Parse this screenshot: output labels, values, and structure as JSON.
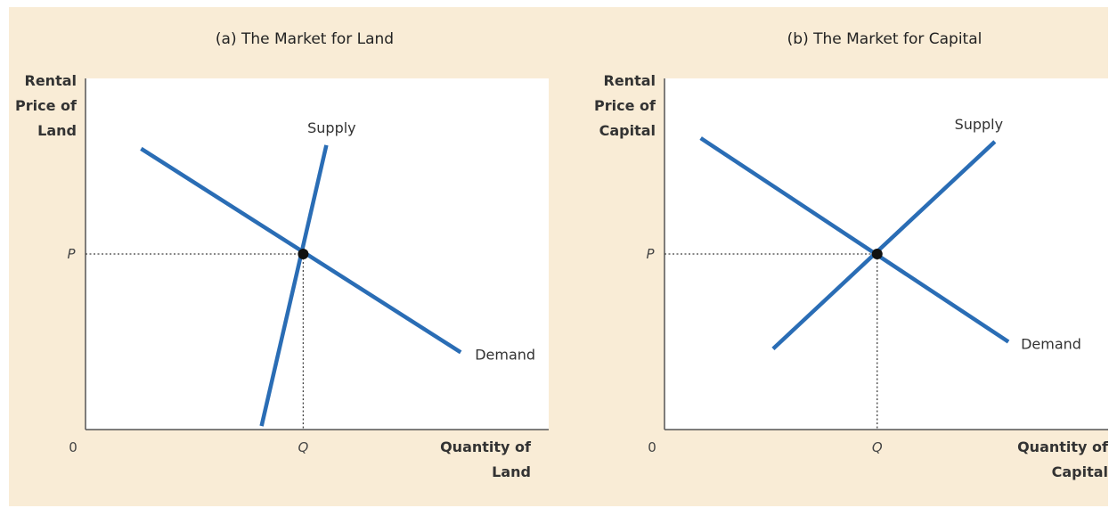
{
  "chart_data": [
    {
      "type": "line",
      "title": "(a) The Market for Land",
      "ylabel": [
        "Rental",
        "Price of",
        "Land"
      ],
      "xlabel": [
        "Quantity of",
        "Land"
      ],
      "origin_label": "0",
      "xlim": [
        0,
        100
      ],
      "ylim": [
        0,
        100
      ],
      "equilibrium": {
        "x": 47,
        "y": 50,
        "x_label": "Q",
        "y_label": "P"
      },
      "series": [
        {
          "name": "Supply",
          "points": [
            [
              38,
              1
            ],
            [
              52,
              81
            ]
          ],
          "color": "#2a6db5"
        },
        {
          "name": "Demand",
          "points": [
            [
              12,
              80
            ],
            [
              81,
              22
            ]
          ],
          "color": "#2a6db5"
        }
      ],
      "grid": false
    },
    {
      "type": "line",
      "title": "(b) The Market for Capital",
      "ylabel": [
        "Rental",
        "Price of",
        "Capital"
      ],
      "xlabel": [
        "Quantity of",
        "Capital"
      ],
      "origin_label": "0",
      "xlim": [
        0,
        100
      ],
      "ylim": [
        0,
        100
      ],
      "equilibrium": {
        "x": 47,
        "y": 50,
        "x_label": "Q",
        "y_label": "P"
      },
      "series": [
        {
          "name": "Supply",
          "points": [
            [
              24,
              23
            ],
            [
              73,
              82
            ]
          ],
          "color": "#2a6db5"
        },
        {
          "name": "Demand",
          "points": [
            [
              8,
              83
            ],
            [
              76,
              25
            ]
          ],
          "color": "#2a6db5"
        }
      ],
      "grid": false
    }
  ]
}
